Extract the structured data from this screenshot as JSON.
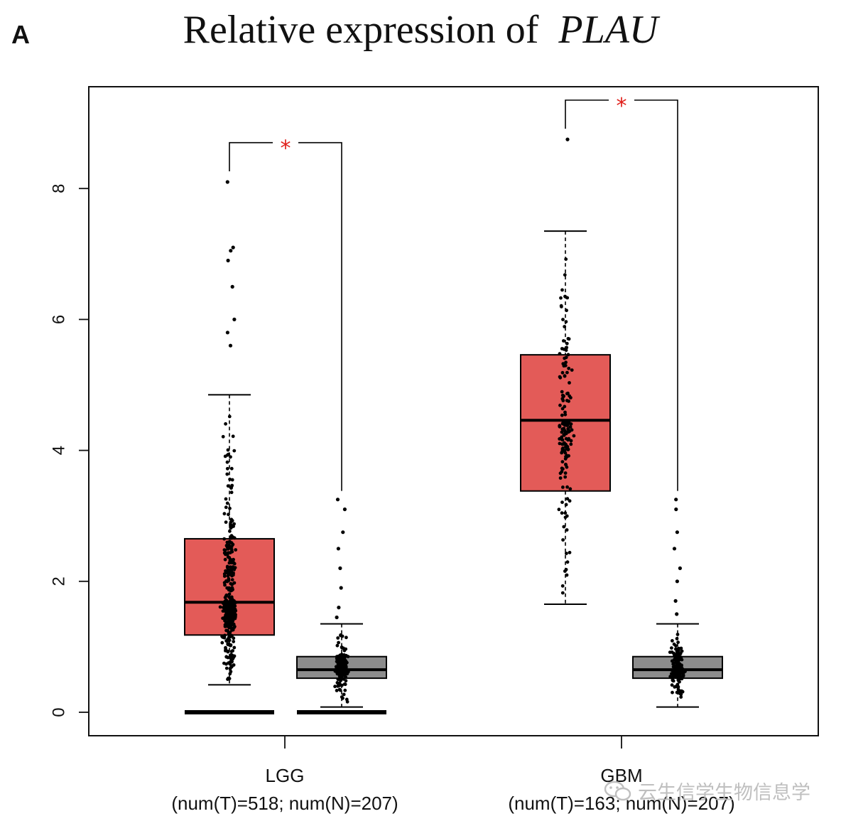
{
  "panel_label": "A",
  "title": {
    "prefix": "Relative expression of",
    "gene": "PLAU"
  },
  "watermark": {
    "text": "云生信学生物信息学",
    "icon": "wechat-icon"
  },
  "colors": {
    "tumor": "#E35B58",
    "normal": "#8C8C8C",
    "significance": "#E0201B",
    "points": "#000000",
    "axis": "#111111"
  },
  "chart_data": {
    "type": "boxplot",
    "title": "Relative expression of PLAU",
    "xlabel": "",
    "ylabel": "",
    "ylim": [
      -0.3,
      9.6
    ],
    "yticks": [
      0,
      2,
      4,
      6,
      8
    ],
    "grid": false,
    "groups": [
      {
        "name": "LGG",
        "sample_label": "(num(T)=518; num(N)=207)",
        "significance": "*",
        "boxes": [
          {
            "kind": "tumor",
            "n": 518,
            "min": 0.42,
            "q1": 1.18,
            "median": 1.68,
            "q3": 2.65,
            "max": 4.85,
            "outliers": [
              5.6,
              5.8,
              6.0,
              6.5,
              6.9,
              7.05,
              7.1,
              8.1
            ]
          },
          {
            "kind": "normal",
            "n": 207,
            "min": 0.08,
            "q1": 0.52,
            "median": 0.65,
            "q3": 0.85,
            "max": 1.35,
            "outliers": [
              1.45,
              1.6,
              1.9,
              2.2,
              2.5,
              2.75,
              3.1,
              3.25
            ]
          }
        ]
      },
      {
        "name": "GBM",
        "sample_label": "(num(T)=163; num(N)=207)",
        "significance": "*",
        "boxes": [
          {
            "kind": "tumor",
            "n": 163,
            "min": 1.65,
            "q1": 3.38,
            "median": 4.46,
            "q3": 5.46,
            "max": 7.35,
            "outliers": [
              8.75
            ]
          },
          {
            "kind": "normal",
            "n": 207,
            "min": 0.08,
            "q1": 0.52,
            "median": 0.65,
            "q3": 0.85,
            "max": 1.35,
            "outliers": [
              1.5,
              1.7,
              2.0,
              2.2,
              2.5,
              2.75,
              3.1,
              3.25
            ]
          }
        ]
      }
    ],
    "zero_bars": [
      {
        "group": "LGG",
        "kind": "tumor",
        "value": 0
      },
      {
        "group": "LGG",
        "kind": "normal",
        "value": 0
      }
    ]
  }
}
